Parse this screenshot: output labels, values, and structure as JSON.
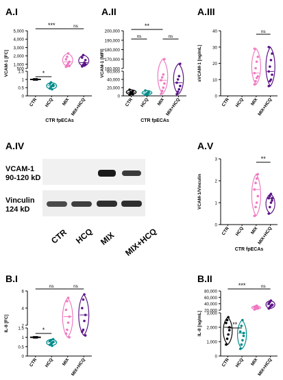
{
  "colors": {
    "CTR": "#000000",
    "HCQ": "#008b8b",
    "MIX": "#ef7ac0",
    "MIX+HCQ": "#5a1485"
  },
  "panels": {
    "AI": {
      "label": "A.I",
      "ylabel": "VCAM-1 [FC]",
      "xgroup": "CTR fpECAs"
    },
    "AII": {
      "label": "A.II",
      "ylabel": "VCAM-1 [MFI]",
      "xgroup": "CTR fpECAs"
    },
    "AIII": {
      "label": "A.III",
      "ylabel": "sVCAM-1 [ng/mL]",
      "xgroup": ""
    },
    "AIV": {
      "label": "A.IV",
      "band1": "VCAM-1",
      "band1_kd": "90-120 kD",
      "band2": "Vinculin",
      "band2_kd": "124 kD",
      "lanes": [
        "CTR",
        "HCQ",
        "MIX",
        "MIX+HCQ"
      ]
    },
    "AV": {
      "label": "A.V",
      "ylabel": "VCAM-1/Vinculin",
      "xgroup": "CTR fpECAs"
    },
    "BI": {
      "label": "B.I",
      "ylabel": "IL-8 [FC]",
      "xgroup": "CTR fpECAs"
    },
    "BII": {
      "label": "B.II",
      "ylabel": "IL-8 [ng/mL]",
      "xgroup": "CTR fpECAs"
    }
  },
  "chart_data": [
    {
      "id": "AI",
      "type": "scatter",
      "title": "A.I",
      "ylabel": "VCAM-1 [FC]",
      "xlabel": "CTR fpECAs",
      "categories": [
        "CTR",
        "HCQ",
        "MIX",
        "MIX+HCQ"
      ],
      "y_axis": "broken",
      "lower_segment": {
        "ylim": [
          0,
          1.5
        ],
        "ticks": [
          0,
          0.5,
          1.0,
          1.5
        ]
      },
      "upper_segment": {
        "ylim": [
          500,
          5000
        ],
        "ticks": [
          500,
          1000,
          2000,
          3000,
          4000,
          5000
        ]
      },
      "series": [
        {
          "category": "CTR",
          "values": [
            1,
            1,
            1,
            1,
            1,
            1,
            1,
            1
          ]
        },
        {
          "category": "HCQ",
          "values": [
            0.45,
            0.55,
            0.62,
            0.68,
            0.74,
            0.82,
            0.4,
            0.6
          ]
        },
        {
          "category": "MIX",
          "values": [
            700,
            900,
            1100,
            1300,
            1600,
            1900,
            2300,
            800
          ]
        },
        {
          "category": "MIX+HCQ",
          "values": [
            750,
            950,
            1200,
            1500,
            1800,
            2100,
            850,
            1000
          ]
        }
      ],
      "significance": [
        {
          "from": "CTR",
          "to": "HCQ",
          "label": "*"
        },
        {
          "from": "CTR",
          "to": "MIX",
          "label": "***"
        },
        {
          "from": "MIX",
          "to": "MIX+HCQ",
          "label": "ns"
        }
      ]
    },
    {
      "id": "AII",
      "type": "scatter",
      "title": "A.II",
      "ylabel": "VCAM-1 [MFI]",
      "xlabel": "CTR fpECAs",
      "categories": [
        "CTR",
        "HCQ",
        "MIX",
        "MIX+HCQ"
      ],
      "y_axis": "broken",
      "lower_segment": {
        "ylim": [
          0,
          60000
        ],
        "ticks": [
          0,
          20000,
          40000,
          60000
        ]
      },
      "upper_segment": {
        "ylim": [
          160000,
          200000
        ],
        "ticks": [
          160000,
          170000,
          180000,
          190000,
          200000
        ]
      },
      "series": [
        {
          "category": "CTR",
          "values": [
            3000,
            5000,
            8000,
            12000,
            15000,
            9000,
            6000,
            4000
          ]
        },
        {
          "category": "HCQ",
          "values": [
            2000,
            4000,
            7000,
            11000,
            13000,
            5000,
            3000,
            8000
          ]
        },
        {
          "category": "MIX",
          "values": [
            5000,
            12000,
            20000,
            30000,
            38000,
            45000,
            52000,
            170000
          ]
        },
        {
          "category": "MIX+HCQ",
          "values": [
            4000,
            10000,
            16000,
            24000,
            32000,
            40000,
            48000,
            165000
          ]
        }
      ],
      "significance": [
        {
          "from": "CTR",
          "to": "MIX",
          "label": "**"
        },
        {
          "from": "CTR",
          "to": "HCQ",
          "label": "ns"
        },
        {
          "from": "MIX",
          "to": "MIX+HCQ",
          "label": "ns"
        }
      ]
    },
    {
      "id": "AIII",
      "type": "scatter",
      "title": "A.III",
      "ylabel": "sVCAM-1 [ng/mL]",
      "xlabel": "",
      "categories": [
        "CTR",
        "HCQ",
        "MIX",
        "MIX+HCQ"
      ],
      "ylim": [
        0,
        40
      ],
      "yticks": [
        0,
        10,
        20,
        30,
        40
      ],
      "series": [
        {
          "category": "MIX",
          "values": [
            7,
            9,
            11,
            12,
            14,
            17,
            21,
            24,
            29
          ]
        },
        {
          "category": "MIX+HCQ",
          "values": [
            6,
            9,
            10,
            13,
            15,
            18,
            22,
            26,
            30
          ]
        }
      ],
      "significance": [
        {
          "from": "MIX",
          "to": "MIX+HCQ",
          "label": "ns"
        }
      ]
    },
    {
      "id": "AV",
      "type": "scatter",
      "title": "A.V",
      "ylabel": "VCAM-1/Vinculin",
      "xlabel": "CTR fpECAs",
      "categories": [
        "CTR",
        "HCQ",
        "MIX",
        "MIX+HCQ"
      ],
      "ylim": [
        0,
        3
      ],
      "yticks": [
        0,
        1,
        2,
        3
      ],
      "series": [
        {
          "category": "MIX",
          "values": [
            0.4,
            0.8,
            1.0,
            1.3,
            1.6,
            1.9,
            2.1,
            2.3
          ]
        },
        {
          "category": "MIX+HCQ",
          "values": [
            0.5,
            0.8,
            1.0,
            1.1,
            1.2,
            1.3,
            1.4,
            1.2
          ]
        }
      ],
      "significance": [
        {
          "from": "MIX",
          "to": "MIX+HCQ",
          "label": "**"
        }
      ]
    },
    {
      "id": "BI",
      "type": "scatter",
      "title": "B.I",
      "ylabel": "IL-8 [FC]",
      "xlabel": "CTR fpECAs",
      "categories": [
        "CTR",
        "HCQ",
        "MIX",
        "MIX+HCQ"
      ],
      "y_axis": "broken",
      "lower_segment": {
        "ylim": [
          0,
          1.5
        ],
        "ticks": [
          0,
          0.5,
          1.0,
          1.5
        ]
      },
      "upper_segment": {
        "ylim": [
          2,
          6
        ],
        "ticks": [
          2,
          4,
          6
        ]
      },
      "series": [
        {
          "category": "CTR",
          "values": [
            1,
            1,
            1,
            1,
            1,
            1,
            1,
            1
          ]
        },
        {
          "category": "HCQ",
          "values": [
            0.6,
            0.65,
            0.7,
            0.75,
            0.8,
            0.85,
            0.55,
            0.9
          ]
        },
        {
          "category": "MIX",
          "values": [
            1.2,
            1.4,
            2.3,
            3.0,
            3.8,
            4.8,
            5.2,
            1.0
          ]
        },
        {
          "category": "MIX+HCQ",
          "values": [
            1.3,
            1.4,
            2.5,
            3.2,
            4.0,
            5.0,
            5.6,
            1.1
          ]
        }
      ],
      "significance": [
        {
          "from": "CTR",
          "to": "HCQ",
          "label": "*"
        },
        {
          "from": "CTR",
          "to": "MIX",
          "label": "ns"
        },
        {
          "from": "MIX",
          "to": "MIX+HCQ",
          "label": "ns"
        }
      ]
    },
    {
      "id": "BII",
      "type": "scatter",
      "title": "B.II",
      "ylabel": "IL-8 [ng/mL]",
      "xlabel": "CTR fpECAs",
      "categories": [
        "CTR",
        "HCQ",
        "MIX",
        "MIX+HCQ"
      ],
      "y_axis": "broken",
      "lower_segment": {
        "ylim": [
          0,
          3000
        ],
        "ticks": [
          0,
          1000,
          2000,
          3000
        ]
      },
      "upper_segment": {
        "ylim": [
          20000,
          80000
        ],
        "ticks": [
          20000,
          40000,
          60000,
          80000
        ]
      },
      "series": [
        {
          "category": "CTR",
          "values": [
            800,
            1200,
            1500,
            2000,
            2300,
            2500,
            2700,
            1800
          ]
        },
        {
          "category": "HCQ",
          "values": [
            500,
            800,
            1100,
            1400,
            1700,
            2100,
            2500,
            1600
          ]
        },
        {
          "category": "MIX",
          "values": [
            22000,
            24000,
            26000,
            28000,
            30000,
            32000,
            34000,
            27000
          ]
        },
        {
          "category": "MIX+HCQ",
          "values": [
            25000,
            29000,
            33000,
            37000,
            41000,
            45000,
            50000,
            35000
          ]
        }
      ],
      "significance": [
        {
          "from": "CTR",
          "to": "HCQ",
          "label": "**"
        },
        {
          "from": "CTR",
          "to": "MIX",
          "label": "***"
        },
        {
          "from": "MIX",
          "to": "MIX+HCQ",
          "label": "ns"
        }
      ]
    }
  ]
}
